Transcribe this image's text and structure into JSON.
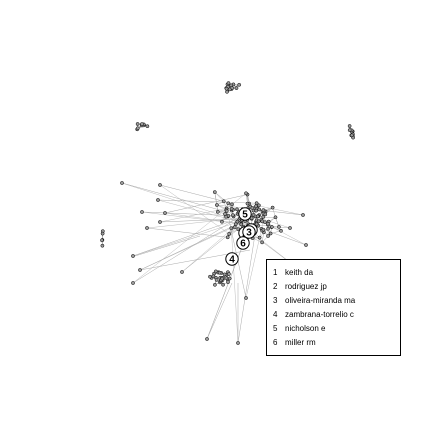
{
  "network": {
    "node_color": "#999999",
    "edge_color": "#aaaaaa",
    "highlighted_nodes": [
      {
        "rank": "1",
        "name": "keith da"
      },
      {
        "rank": "2",
        "name": "rodriguez jp"
      },
      {
        "rank": "3",
        "name": "oliveira-miranda ma"
      },
      {
        "rank": "4",
        "name": "zambrana-torrelio c"
      },
      {
        "rank": "5",
        "name": "nicholson e"
      },
      {
        "rank": "6",
        "name": "miller rm"
      }
    ]
  }
}
